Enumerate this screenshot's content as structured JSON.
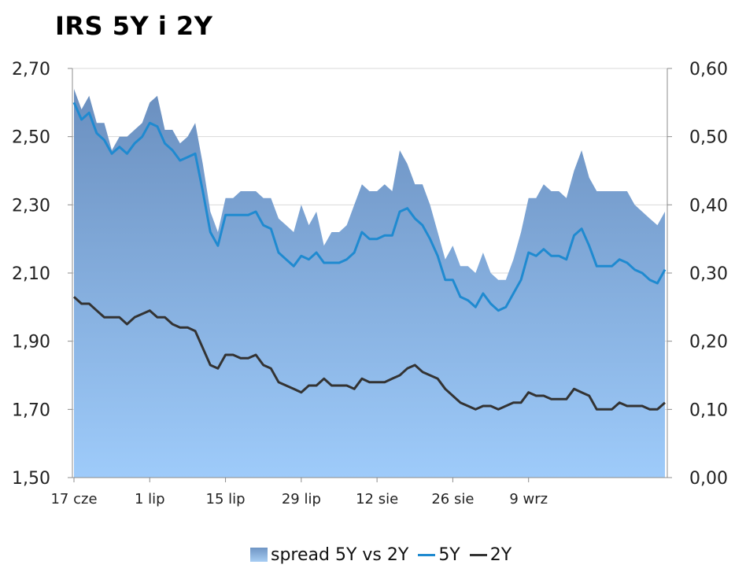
{
  "title": "IRS 5Y i 2Y",
  "colors": {
    "spread_top": "#6a8fbf",
    "spread_bottom": "#9ecbfa",
    "line_5y": "#1f8ad0",
    "line_2y": "#333333",
    "grid": "#d9d9d9"
  },
  "legend": {
    "spread": "spread 5Y vs 2Y",
    "y5": "5Y",
    "y2": "2Y"
  },
  "chart_data": {
    "type": "line",
    "title": "IRS 5Y i 2Y",
    "y_left": {
      "lim": [
        1.5,
        2.7
      ],
      "ticks": [
        "1,50",
        "1,70",
        "1,90",
        "2,10",
        "2,30",
        "2,50",
        "2,70"
      ],
      "values": [
        1.5,
        1.7,
        1.9,
        2.1,
        2.3,
        2.5,
        2.7
      ]
    },
    "y_right": {
      "lim": [
        0.0,
        0.6
      ],
      "ticks": [
        "0,00",
        "0,10",
        "0,20",
        "0,30",
        "0,40",
        "0,50",
        "0,60"
      ],
      "values": [
        0,
        0.1,
        0.2,
        0.3,
        0.4,
        0.5,
        0.6
      ]
    },
    "x_ticks": [
      "17 cze",
      "1 lip",
      "15 lip",
      "29 lip",
      "12 sie",
      "26 sie",
      "9 wrz"
    ],
    "x_tick_index": [
      0,
      10,
      20,
      30,
      40,
      50,
      60
    ],
    "grid": true,
    "legend_position": "bottom",
    "series": [
      {
        "name": "5Y",
        "axis": "left",
        "kind": "line",
        "values": [
          2.6,
          2.55,
          2.57,
          2.51,
          2.49,
          2.45,
          2.47,
          2.45,
          2.48,
          2.5,
          2.54,
          2.53,
          2.48,
          2.46,
          2.43,
          2.44,
          2.45,
          2.34,
          2.22,
          2.18,
          2.27,
          2.27,
          2.27,
          2.27,
          2.28,
          2.24,
          2.23,
          2.16,
          2.14,
          2.12,
          2.15,
          2.14,
          2.16,
          2.13,
          2.13,
          2.13,
          2.14,
          2.16,
          2.22,
          2.2,
          2.2,
          2.21,
          2.21,
          2.28,
          2.29,
          2.26,
          2.24,
          2.2,
          2.15,
          2.08,
          2.08,
          2.03,
          2.02,
          2.0,
          2.04,
          2.01,
          1.99,
          2.0,
          2.04,
          2.08,
          2.16,
          2.15,
          2.17,
          2.15,
          2.15,
          2.14,
          2.21,
          2.23,
          2.18,
          2.12,
          2.12,
          2.12,
          2.14,
          2.13,
          2.11,
          2.1,
          2.08,
          2.07,
          2.11
        ]
      },
      {
        "name": "2Y",
        "axis": "left",
        "kind": "line",
        "values": [
          2.03,
          2.01,
          2.01,
          1.99,
          1.97,
          1.97,
          1.97,
          1.95,
          1.97,
          1.98,
          1.99,
          1.97,
          1.97,
          1.95,
          1.94,
          1.94,
          1.93,
          1.88,
          1.83,
          1.82,
          1.86,
          1.86,
          1.85,
          1.85,
          1.86,
          1.83,
          1.82,
          1.78,
          1.77,
          1.76,
          1.75,
          1.77,
          1.77,
          1.79,
          1.77,
          1.77,
          1.77,
          1.76,
          1.79,
          1.78,
          1.78,
          1.78,
          1.79,
          1.8,
          1.82,
          1.83,
          1.81,
          1.8,
          1.79,
          1.76,
          1.74,
          1.72,
          1.71,
          1.7,
          1.71,
          1.71,
          1.7,
          1.71,
          1.72,
          1.72,
          1.75,
          1.74,
          1.74,
          1.73,
          1.73,
          1.73,
          1.76,
          1.75,
          1.74,
          1.7,
          1.7,
          1.7,
          1.72,
          1.71,
          1.71,
          1.71,
          1.7,
          1.7,
          1.72
        ]
      },
      {
        "name": "spread 5Y vs 2Y",
        "axis": "right",
        "kind": "area",
        "values": [
          0.57,
          0.54,
          0.56,
          0.52,
          0.52,
          0.48,
          0.5,
          0.5,
          0.51,
          0.52,
          0.55,
          0.56,
          0.51,
          0.51,
          0.49,
          0.5,
          0.52,
          0.46,
          0.39,
          0.36,
          0.41,
          0.41,
          0.42,
          0.42,
          0.42,
          0.41,
          0.41,
          0.38,
          0.37,
          0.36,
          0.4,
          0.37,
          0.39,
          0.34,
          0.36,
          0.36,
          0.37,
          0.4,
          0.43,
          0.42,
          0.42,
          0.43,
          0.42,
          0.48,
          0.46,
          0.43,
          0.43,
          0.4,
          0.36,
          0.32,
          0.34,
          0.31,
          0.31,
          0.3,
          0.33,
          0.3,
          0.29,
          0.29,
          0.32,
          0.36,
          0.41,
          0.41,
          0.43,
          0.42,
          0.42,
          0.41,
          0.45,
          0.48,
          0.44,
          0.42,
          0.42,
          0.42,
          0.42,
          0.42,
          0.4,
          0.39,
          0.38,
          0.37,
          0.39
        ]
      }
    ]
  }
}
